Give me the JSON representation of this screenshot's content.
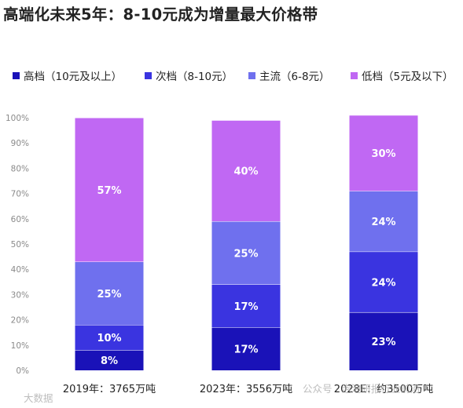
{
  "title": "高端化未来5年：8-10元成为增量最大价格带",
  "colors": {
    "高档": "#1a12b8",
    "次档": "#3a34e0",
    "主流": "#6f70ee",
    "低档": "#c068f3"
  },
  "chart_data": {
    "type": "bar",
    "stacked": true,
    "percent": true,
    "categories": [
      "2019年：3765万吨",
      "2023年：3556万吨",
      "2028E：约3500万吨"
    ],
    "series": [
      {
        "name": "高档（10元及以上）",
        "values": [
          8,
          17,
          23
        ],
        "labels": [
          "8%",
          "17%",
          "23%"
        ]
      },
      {
        "name": "次档（8-10元）",
        "values": [
          10,
          17,
          24
        ],
        "labels": [
          "10%",
          "17%",
          "24%"
        ]
      },
      {
        "name": "主流（6-8元）",
        "values": [
          25,
          25,
          24
        ],
        "labels": [
          "25%",
          "25%",
          "24%"
        ]
      },
      {
        "name": "低档（5元及以下）",
        "values": [
          57,
          40,
          30
        ],
        "labels": [
          "57%",
          "40%",
          "30%"
        ]
      }
    ],
    "ylim": [
      0,
      100
    ],
    "yticks": [
      "0%",
      "10%",
      "20%",
      "30%",
      "40%",
      "50%",
      "60%",
      "70%",
      "80%",
      "90%",
      "100%"
    ],
    "legend_position": "top",
    "grid": false
  },
  "watermarks": [
    "公众号 · 泡泡研报行业前沿",
    "大数据"
  ]
}
